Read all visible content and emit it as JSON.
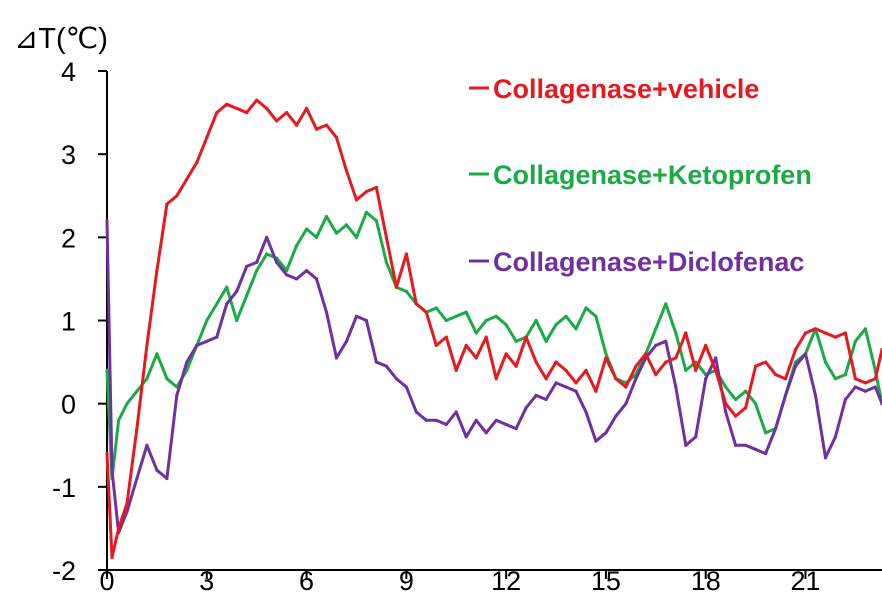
{
  "chart_data": {
    "type": "line",
    "ylabel": "⊿T(℃)",
    "xlabel": "",
    "xlim": [
      0,
      23.3
    ],
    "ylim": [
      -2,
      4
    ],
    "x_ticks": [
      0,
      3,
      6,
      9,
      12,
      15,
      18,
      21
    ],
    "y_ticks": [
      -2,
      -1,
      0,
      1,
      2,
      3,
      4
    ],
    "x_tick_labels": [
      "0",
      "3",
      "6",
      "9",
      "12",
      "15",
      "18",
      "21"
    ],
    "y_tick_labels": [
      "-2",
      "-1",
      "0",
      "1",
      "2",
      "3",
      "4"
    ],
    "grid": false,
    "legend_position": "top-right",
    "series": [
      {
        "name": "Collagenase+vehicle",
        "color": "#e8191e",
        "x": [
          0,
          0.15,
          0.35,
          0.6,
          0.9,
          1.2,
          1.5,
          1.8,
          2.1,
          2.4,
          2.7,
          3.0,
          3.3,
          3.6,
          3.9,
          4.2,
          4.5,
          4.8,
          5.1,
          5.4,
          5.7,
          6.0,
          6.3,
          6.6,
          6.9,
          7.2,
          7.5,
          7.8,
          8.1,
          8.4,
          8.7,
          9.0,
          9.3,
          9.6,
          9.9,
          10.2,
          10.5,
          10.8,
          11.1,
          11.4,
          11.7,
          12.0,
          12.3,
          12.6,
          12.9,
          13.2,
          13.5,
          13.8,
          14.1,
          14.4,
          14.7,
          15.0,
          15.3,
          15.6,
          15.9,
          16.2,
          16.5,
          16.8,
          17.1,
          17.4,
          17.7,
          18.0,
          18.3,
          18.6,
          18.9,
          19.2,
          19.5,
          19.8,
          20.1,
          20.4,
          20.7,
          21.0,
          21.3,
          21.6,
          21.9,
          22.2,
          22.5,
          22.8,
          23.1,
          23.3
        ],
        "values": [
          -0.6,
          -1.85,
          -1.5,
          -1.2,
          -0.3,
          0.7,
          1.6,
          2.4,
          2.5,
          2.7,
          2.9,
          3.2,
          3.5,
          3.6,
          3.55,
          3.5,
          3.65,
          3.55,
          3.4,
          3.5,
          3.35,
          3.55,
          3.3,
          3.35,
          3.2,
          2.8,
          2.45,
          2.55,
          2.6,
          2.0,
          1.4,
          1.8,
          1.2,
          1.1,
          0.7,
          0.8,
          0.4,
          0.7,
          0.55,
          0.8,
          0.3,
          0.6,
          0.45,
          0.8,
          0.5,
          0.3,
          0.5,
          0.4,
          0.25,
          0.4,
          0.15,
          0.55,
          0.3,
          0.2,
          0.45,
          0.6,
          0.35,
          0.5,
          0.55,
          0.85,
          0.4,
          0.7,
          0.4,
          0.0,
          -0.15,
          -0.05,
          0.45,
          0.5,
          0.35,
          0.3,
          0.65,
          0.85,
          0.9,
          0.85,
          0.8,
          0.85,
          0.3,
          0.25,
          0.3,
          0.65
        ]
      },
      {
        "name": "Collagenase+Ketoprofen",
        "color": "#1aab46",
        "x": [
          0,
          0.15,
          0.35,
          0.6,
          0.9,
          1.2,
          1.5,
          1.8,
          2.1,
          2.4,
          2.7,
          3.0,
          3.3,
          3.6,
          3.9,
          4.2,
          4.5,
          4.8,
          5.1,
          5.4,
          5.7,
          6.0,
          6.3,
          6.6,
          6.9,
          7.2,
          7.5,
          7.8,
          8.1,
          8.4,
          8.7,
          9.0,
          9.3,
          9.6,
          9.9,
          10.2,
          10.5,
          10.8,
          11.1,
          11.4,
          11.7,
          12.0,
          12.3,
          12.6,
          12.9,
          13.2,
          13.5,
          13.8,
          14.1,
          14.4,
          14.7,
          15.0,
          15.3,
          15.6,
          15.9,
          16.2,
          16.5,
          16.8,
          17.1,
          17.4,
          17.7,
          18.0,
          18.3,
          18.6,
          18.9,
          19.2,
          19.5,
          19.8,
          20.1,
          20.4,
          20.7,
          21.0,
          21.3,
          21.6,
          21.9,
          22.2,
          22.5,
          22.8,
          23.1,
          23.3
        ],
        "values": [
          0.4,
          -0.9,
          -0.2,
          0.0,
          0.15,
          0.3,
          0.6,
          0.3,
          0.2,
          0.4,
          0.7,
          1.0,
          1.2,
          1.4,
          1.0,
          1.3,
          1.6,
          1.8,
          1.75,
          1.6,
          1.9,
          2.1,
          2.0,
          2.25,
          2.05,
          2.15,
          2.0,
          2.3,
          2.2,
          1.7,
          1.4,
          1.35,
          1.2,
          1.1,
          1.15,
          1.0,
          1.05,
          1.1,
          0.85,
          1.0,
          1.05,
          0.95,
          0.75,
          0.8,
          1.0,
          0.75,
          0.95,
          1.05,
          0.9,
          1.15,
          1.05,
          0.6,
          0.3,
          0.25,
          0.35,
          0.6,
          0.9,
          1.2,
          0.85,
          0.4,
          0.5,
          0.35,
          0.4,
          0.2,
          0.05,
          0.15,
          0.0,
          -0.35,
          -0.3,
          0.1,
          0.5,
          0.6,
          0.9,
          0.5,
          0.3,
          0.35,
          0.75,
          0.9,
          0.4,
          0.0
        ]
      },
      {
        "name": "Collagenase+Diclofenac",
        "color": "#7030a0",
        "x": [
          0,
          0.15,
          0.35,
          0.6,
          0.9,
          1.2,
          1.5,
          1.8,
          2.1,
          2.4,
          2.7,
          3.0,
          3.3,
          3.6,
          3.9,
          4.2,
          4.5,
          4.8,
          5.1,
          5.4,
          5.7,
          6.0,
          6.3,
          6.6,
          6.9,
          7.2,
          7.5,
          7.8,
          8.1,
          8.4,
          8.7,
          9.0,
          9.3,
          9.6,
          9.9,
          10.2,
          10.5,
          10.8,
          11.1,
          11.4,
          11.7,
          12.0,
          12.3,
          12.6,
          12.9,
          13.2,
          13.5,
          13.8,
          14.1,
          14.4,
          14.7,
          15.0,
          15.3,
          15.6,
          15.9,
          16.2,
          16.5,
          16.8,
          17.1,
          17.4,
          17.7,
          18.0,
          18.3,
          18.6,
          18.9,
          19.2,
          19.5,
          19.8,
          20.1,
          20.4,
          20.7,
          21.0,
          21.3,
          21.6,
          21.9,
          22.2,
          22.5,
          22.8,
          23.1,
          23.3
        ],
        "values": [
          2.2,
          -0.8,
          -1.55,
          -1.3,
          -0.9,
          -0.5,
          -0.8,
          -0.9,
          0.1,
          0.5,
          0.7,
          0.75,
          0.8,
          1.2,
          1.35,
          1.65,
          1.7,
          2.0,
          1.7,
          1.55,
          1.5,
          1.6,
          1.5,
          1.1,
          0.55,
          0.75,
          1.05,
          1.0,
          0.5,
          0.45,
          0.3,
          0.2,
          -0.1,
          -0.2,
          -0.2,
          -0.25,
          -0.1,
          -0.4,
          -0.2,
          -0.35,
          -0.2,
          -0.25,
          -0.3,
          -0.05,
          0.1,
          0.05,
          0.25,
          0.2,
          0.15,
          -0.1,
          -0.45,
          -0.35,
          -0.15,
          0.0,
          0.3,
          0.55,
          0.7,
          0.75,
          0.2,
          -0.5,
          -0.4,
          0.3,
          0.55,
          -0.1,
          -0.5,
          -0.5,
          -0.55,
          -0.6,
          -0.3,
          0.1,
          0.45,
          0.6,
          0.1,
          -0.65,
          -0.4,
          0.05,
          0.2,
          0.15,
          0.2,
          0.0
        ]
      }
    ]
  }
}
